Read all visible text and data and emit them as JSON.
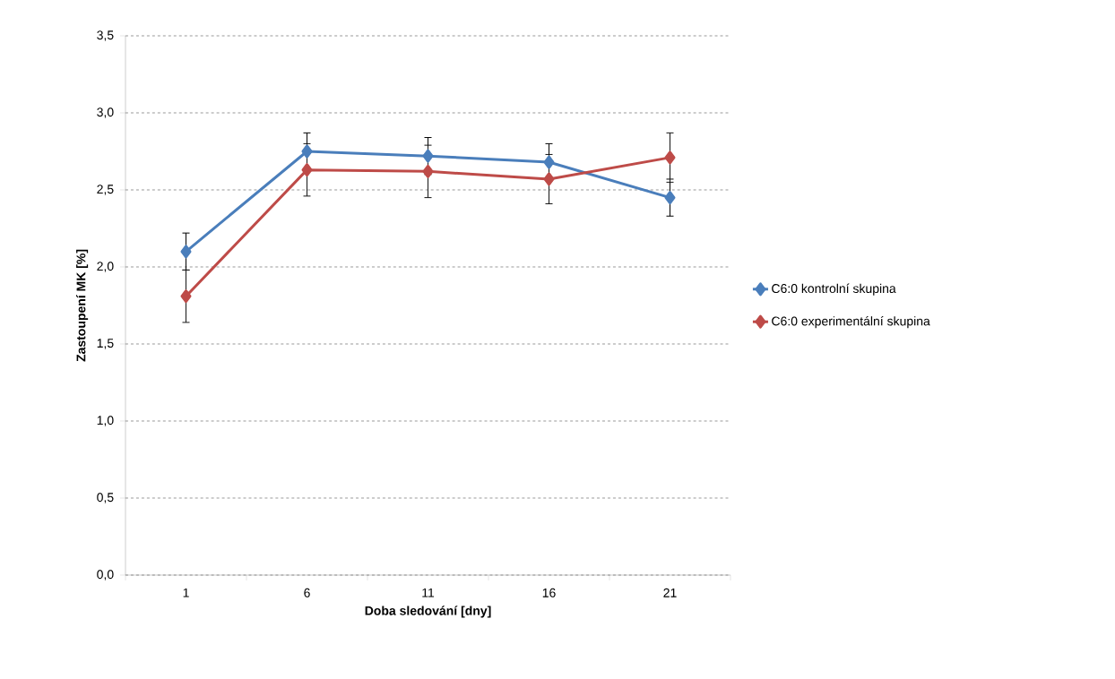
{
  "chart_data": {
    "type": "line",
    "xlabel": "Doba sledování [dny]",
    "ylabel": "Zastoupení MK [%]",
    "categories": [
      "1",
      "6",
      "11",
      "16",
      "21"
    ],
    "series": [
      {
        "name": "C6:0 kontrolní skupina",
        "color": "#4a7ebb",
        "values": [
          2.1,
          2.75,
          2.72,
          2.68,
          2.45
        ],
        "errors": [
          0.12,
          0.12,
          0.12,
          0.12,
          0.12
        ]
      },
      {
        "name": "C6:0 experimentální skupina",
        "color": "#be4b48",
        "values": [
          1.81,
          2.63,
          2.62,
          2.57,
          2.71
        ],
        "errors": [
          0.17,
          0.17,
          0.17,
          0.16,
          0.16
        ]
      }
    ],
    "ylim": [
      0,
      3.5
    ],
    "yticks": [
      {
        "value": 0,
        "label": "0,0"
      },
      {
        "value": 0.5,
        "label": "0,5"
      },
      {
        "value": 1,
        "label": "1,0"
      },
      {
        "value": 1.5,
        "label": "1,5"
      },
      {
        "value": 2,
        "label": "2,0"
      },
      {
        "value": 2.5,
        "label": "2,5"
      },
      {
        "value": 3,
        "label": "3,0"
      },
      {
        "value": 3.5,
        "label": "3,5"
      }
    ],
    "grid": "y",
    "legend": "right",
    "marker": "diamond",
    "line_style": "solid"
  }
}
